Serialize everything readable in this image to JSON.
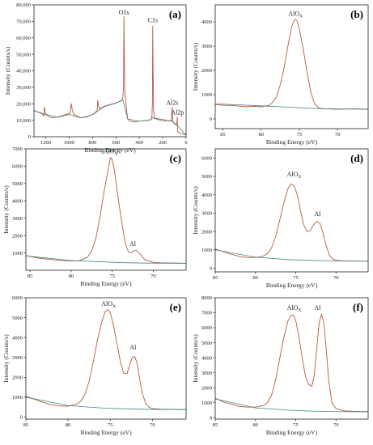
{
  "colors": {
    "spectrum": "#b85a3e",
    "background_line": "#3f8a86",
    "axis": "#222222"
  },
  "chart_data": [
    {
      "type": "line",
      "panel_label": "(a)",
      "xlabel": "Binding Energy (eV)",
      "ylabel": "Intensity (Counts/s)",
      "xlim": [
        1300,
        0
      ],
      "ylim": [
        0,
        80000
      ],
      "x_reversed": true,
      "xticks": [
        1200,
        1000,
        800,
        600,
        400,
        200,
        0
      ],
      "yticks": [
        0,
        10000,
        20000,
        30000,
        40000,
        50000,
        60000,
        70000,
        80000
      ],
      "ytick_labels": [
        "0",
        "10,000",
        "20,000",
        "30,000",
        "40,000",
        "50,000",
        "60,000",
        "70,000",
        "80,000"
      ],
      "annotations": [
        {
          "text": "O1s",
          "x": 531,
          "y": 74000
        },
        {
          "text": "C1s",
          "x": 285,
          "y": 69500
        },
        {
          "text": "Al2s",
          "x": 119,
          "y": 19500
        },
        {
          "text": "Al2p",
          "x": 74,
          "y": 13500
        }
      ],
      "series": [
        {
          "role": "spectrum",
          "x": [
            1300,
            1250,
            1225,
            1215,
            1212,
            1200,
            1150,
            1100,
            1050,
            1000,
            990,
            980,
            975,
            960,
            900,
            850,
            800,
            780,
            760,
            755,
            750,
            740,
            700,
            650,
            600,
            560,
            550,
            540,
            535,
            531,
            528,
            525,
            520,
            500,
            480,
            450,
            400,
            350,
            320,
            300,
            292,
            288,
            285,
            282,
            278,
            270,
            250,
            200,
            160,
            140,
            125,
            119,
            115,
            110,
            100,
            90,
            80,
            76,
            74,
            72,
            65,
            40,
            20,
            0
          ],
          "y": [
            16000,
            14500,
            13500,
            12500,
            18000,
            13500,
            11500,
            12000,
            13000,
            14000,
            15000,
            20000,
            17000,
            13500,
            11500,
            12000,
            13500,
            14500,
            16000,
            22000,
            19000,
            17000,
            18500,
            19500,
            20500,
            21500,
            22000,
            24000,
            30000,
            73000,
            52000,
            30000,
            24000,
            11000,
            9500,
            9000,
            9500,
            9800,
            10000,
            10500,
            12000,
            20000,
            67000,
            40000,
            16000,
            11500,
            11000,
            10500,
            9800,
            9500,
            9800,
            18000,
            10000,
            8500,
            8000,
            7500,
            7000,
            12000,
            6500,
            3500,
            2500,
            2000,
            1500,
            1000
          ]
        },
        {
          "role": "background",
          "x": [
            1300,
            1200,
            1100,
            1000,
            900,
            800,
            700,
            600,
            540,
            500,
            400,
            300,
            290,
            200,
            130,
            100,
            80,
            0
          ],
          "y": [
            15800,
            13600,
            11800,
            13500,
            11400,
            13300,
            18300,
            20300,
            22500,
            10800,
            9400,
            10300,
            11500,
            9600,
            9800,
            8300,
            7300,
            1000
          ]
        }
      ]
    },
    {
      "type": "line",
      "panel_label": "(b)",
      "xlabel": "Binding Energy (eV)",
      "ylabel": "Intensity (Counts/s)",
      "xlim": [
        86,
        66
      ],
      "ylim": [
        -400,
        4700
      ],
      "x_reversed": true,
      "xticks": [
        85,
        80,
        75,
        70
      ],
      "yticks": [
        0,
        1000,
        2000,
        3000,
        4000
      ],
      "annotations": [
        {
          "text": "AlO",
          "subscript": "X",
          "x": 75.5,
          "y": 4250
        }
      ],
      "series": [
        {
          "role": "spectrum",
          "x": [
            86,
            85,
            84,
            83,
            82,
            81,
            80,
            79,
            78.5,
            78,
            77.5,
            77,
            76.5,
            76,
            75.7,
            75.5,
            75.3,
            75,
            74.5,
            74,
            73.5,
            73,
            72.5,
            72,
            71,
            70,
            69,
            68,
            67,
            66
          ],
          "y": [
            600,
            560,
            560,
            530,
            500,
            520,
            500,
            560,
            680,
            900,
            1400,
            2100,
            3000,
            3800,
            4050,
            4100,
            4050,
            3700,
            2900,
            1950,
            1100,
            620,
            470,
            420,
            410,
            400,
            410,
            420,
            410,
            400
          ]
        },
        {
          "role": "background",
          "x": [
            86,
            80,
            76,
            74,
            70,
            66
          ],
          "y": [
            620,
            540,
            480,
            440,
            410,
            400
          ]
        }
      ]
    },
    {
      "type": "line",
      "panel_label": "(c)",
      "xlabel": "Binding Energy (eV)",
      "ylabel": "Intensity (Counts/s)",
      "xlim": [
        85.5,
        66
      ],
      "ylim": [
        0,
        7000
      ],
      "x_reversed": true,
      "xticks": [
        85,
        80,
        75,
        70
      ],
      "yticks": [
        1000,
        2000,
        3000,
        4000,
        5000,
        6000,
        7000
      ],
      "annotations": [
        {
          "text": "AlO",
          "subscript": "X",
          "x": 75.2,
          "y": 6750
        },
        {
          "text": "Al",
          "x": 72.5,
          "y": 1400
        }
      ],
      "series": [
        {
          "role": "spectrum",
          "x": [
            85.5,
            84,
            82,
            80,
            79,
            78,
            77.5,
            77,
            76.5,
            76,
            75.5,
            75.2,
            75,
            74.7,
            74.4,
            74,
            73.6,
            73.3,
            73,
            72.7,
            72.4,
            72.1,
            71.8,
            71.4,
            71,
            70,
            69,
            68,
            67,
            66
          ],
          "y": [
            850,
            700,
            600,
            530,
            550,
            750,
            1100,
            1800,
            3000,
            4500,
            5800,
            6500,
            6400,
            5700,
            4600,
            3300,
            2100,
            1400,
            1050,
            1000,
            1100,
            1150,
            1050,
            820,
            600,
            460,
            430,
            420,
            410,
            400
          ]
        },
        {
          "role": "background",
          "x": [
            85.5,
            80,
            76,
            74,
            71,
            66
          ],
          "y": [
            830,
            560,
            480,
            440,
            410,
            400
          ]
        }
      ]
    },
    {
      "type": "line",
      "panel_label": "(d)",
      "xlabel": "Binding Energy (eV)",
      "ylabel": "Intensity (Counts/s)",
      "xlim": [
        85,
        66
      ],
      "ylim": [
        -200,
        6500
      ],
      "x_reversed": true,
      "xticks": [
        85,
        80,
        75,
        70
      ],
      "yticks": [
        0,
        1000,
        2000,
        3000,
        4000,
        5000,
        6000
      ],
      "annotations": [
        {
          "text": "AlO",
          "subscript": "X",
          "x": 75.2,
          "y": 5000
        },
        {
          "text": "Al",
          "x": 72.3,
          "y": 2850
        }
      ],
      "series": [
        {
          "role": "spectrum",
          "x": [
            85,
            84,
            83,
            82,
            81,
            80,
            79,
            78.5,
            78,
            77.5,
            77,
            76.5,
            76,
            75.6,
            75.2,
            74.8,
            74.4,
            74,
            73.6,
            73.2,
            72.8,
            72.4,
            72,
            71.6,
            71.2,
            70.8,
            70.4,
            70,
            69,
            68,
            67,
            66
          ],
          "y": [
            1050,
            900,
            760,
            640,
            580,
            580,
            660,
            800,
            1100,
            1700,
            2600,
            3500,
            4300,
            4600,
            4500,
            4000,
            3100,
            2350,
            2000,
            2050,
            2350,
            2550,
            2450,
            1900,
            1200,
            700,
            500,
            430,
            400,
            390,
            380,
            380
          ]
        },
        {
          "role": "background",
          "x": [
            85,
            80,
            76,
            73,
            70,
            66
          ],
          "y": [
            1000,
            600,
            470,
            420,
            390,
            380
          ]
        }
      ]
    },
    {
      "type": "line",
      "panel_label": "(e)",
      "xlabel": "Binding Energy (eV)",
      "ylabel": "Intensity (Counts/s)",
      "xlim": [
        85,
        66
      ],
      "ylim": [
        -100,
        6000
      ],
      "x_reversed": true,
      "xticks": [
        85,
        80,
        75,
        70
      ],
      "yticks": [
        0,
        1000,
        2000,
        3000,
        4000,
        5000,
        6000
      ],
      "annotations": [
        {
          "text": "AlO",
          "subscript": "X",
          "x": 75.2,
          "y": 5600
        },
        {
          "text": "Al",
          "x": 72.3,
          "y": 3400
        }
      ],
      "series": [
        {
          "role": "spectrum",
          "x": [
            85,
            84,
            83,
            82,
            81,
            80,
            79,
            78.5,
            78,
            77.5,
            77,
            76.5,
            76,
            75.6,
            75.3,
            75,
            74.6,
            74.2,
            73.8,
            73.4,
            73,
            72.7,
            72.4,
            72.1,
            71.8,
            71.5,
            71.2,
            70.8,
            70.4,
            70,
            69,
            68,
            67,
            66
          ],
          "y": [
            1050,
            900,
            750,
            620,
            560,
            550,
            650,
            800,
            1150,
            1800,
            2800,
            3900,
            4800,
            5300,
            5400,
            5250,
            4600,
            3700,
            2800,
            2200,
            2200,
            2600,
            3000,
            3050,
            2700,
            1900,
            1200,
            700,
            500,
            430,
            400,
            390,
            380,
            380
          ]
        },
        {
          "role": "background",
          "x": [
            85,
            80,
            76,
            73,
            70,
            66
          ],
          "y": [
            1000,
            580,
            460,
            410,
            385,
            380
          ]
        }
      ]
    },
    {
      "type": "line",
      "panel_label": "(f)",
      "xlabel": "Binding Energy (eV)",
      "ylabel": "Intensity (Counts/s)",
      "xlim": [
        85,
        66
      ],
      "ylim": [
        -100,
        8000
      ],
      "x_reversed": true,
      "xticks": [
        85,
        80,
        75,
        70
      ],
      "yticks": [
        0,
        1000,
        2000,
        3000,
        4000,
        5000,
        6000,
        7000,
        8000
      ],
      "annotations": [
        {
          "text": "AlO",
          "subscript": "X",
          "x": 75.2,
          "y": 7200
        },
        {
          "text": "Al",
          "x": 72.3,
          "y": 7200
        }
      ],
      "series": [
        {
          "role": "spectrum",
          "x": [
            85,
            84,
            83,
            82,
            81,
            80,
            79,
            78.5,
            78,
            77.5,
            77,
            76.5,
            76,
            75.6,
            75.3,
            75,
            74.6,
            74.2,
            73.8,
            73.4,
            73,
            72.7,
            72.4,
            72.1,
            71.8,
            71.5,
            71.2,
            70.9,
            70.5,
            70,
            69,
            68,
            67,
            66
          ],
          "y": [
            1300,
            1050,
            900,
            750,
            700,
            700,
            800,
            1000,
            1500,
            2500,
            3900,
            5300,
            6400,
            6800,
            6850,
            6500,
            5400,
            4000,
            2800,
            2200,
            2100,
            2800,
            4500,
            6300,
            6900,
            6300,
            4500,
            2500,
            1000,
            600,
            450,
            420,
            410,
            400
          ]
        },
        {
          "role": "background",
          "x": [
            85,
            80,
            76,
            73,
            70,
            66
          ],
          "y": [
            1250,
            650,
            500,
            430,
            400,
            390
          ]
        }
      ]
    }
  ]
}
